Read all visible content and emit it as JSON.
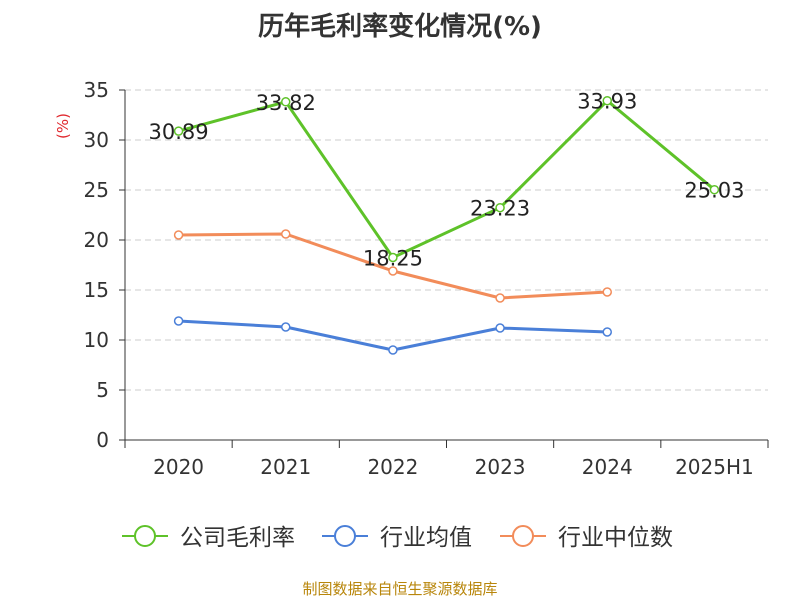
{
  "title": "历年毛利率变化情况(%)",
  "source": "制图数据来自恒生聚源数据库",
  "colors": {
    "gross_margin": "#5ec229",
    "industry_avg": "#4a7fd8",
    "industry_median": "#f28c5a",
    "axis": "#333333",
    "grid": "#cccccc",
    "unit": "#e0282e"
  },
  "chart_data": {
    "type": "line",
    "title": "历年毛利率变化情况(%)",
    "ylabel": "(%)",
    "categories": [
      "2020",
      "2021",
      "2022",
      "2023",
      "2024",
      "2025H1"
    ],
    "ylim": [
      0,
      35
    ],
    "yticks": [
      0,
      5,
      10,
      15,
      20,
      25,
      30,
      35
    ],
    "grid": "horizontal dashed",
    "legend": "bottom",
    "series": [
      {
        "name": "公司毛利率",
        "key": "gross_margin",
        "values": [
          30.89,
          33.82,
          18.25,
          23.23,
          33.93,
          25.03
        ],
        "labels": [
          "30.89",
          "33.82",
          "18.25",
          "23.23",
          "33.93",
          "25.03"
        ]
      },
      {
        "name": "行业均值",
        "key": "industry_avg",
        "values": [
          11.9,
          11.3,
          9.0,
          11.2,
          10.8,
          null
        ]
      },
      {
        "name": "行业中位数",
        "key": "industry_median",
        "values": [
          20.5,
          20.6,
          16.9,
          14.2,
          14.8,
          null
        ]
      }
    ]
  }
}
